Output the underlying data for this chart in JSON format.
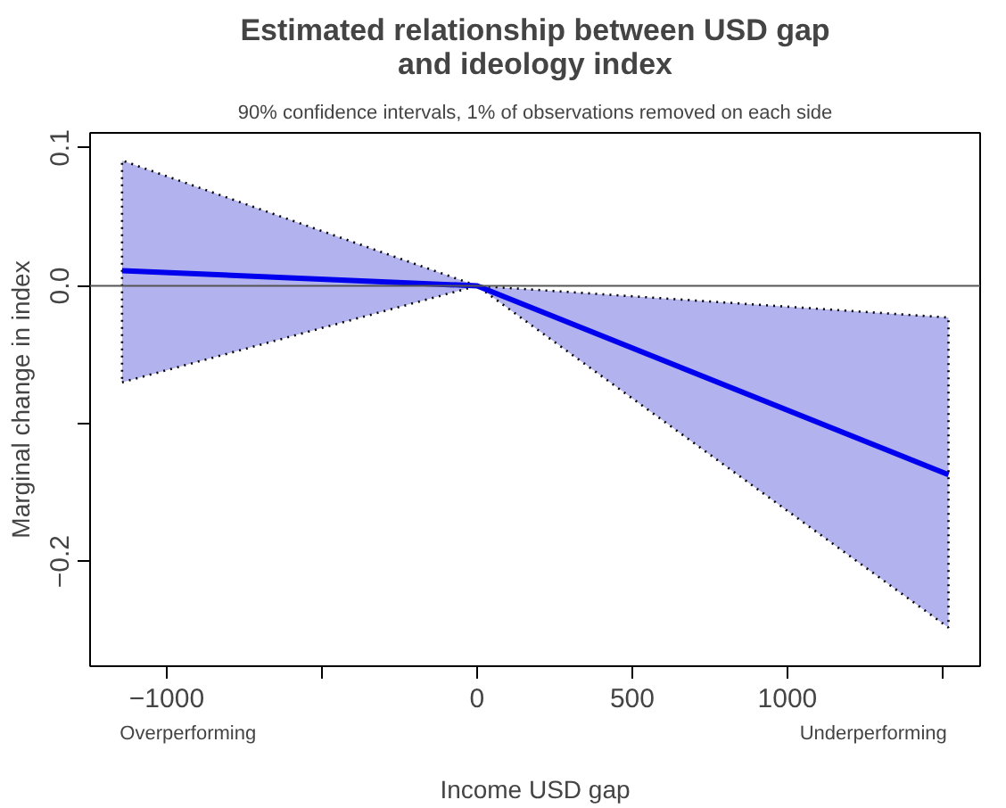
{
  "chart_data": {
    "type": "line",
    "title": "Estimated relationship between USD gap and ideology index",
    "subtitle": "90% confidence intervals, 1% of observations removed on each side",
    "xlabel": "Income USD gap",
    "ylabel": "Marginal change in index",
    "annotations": [
      "Overperforming",
      "Underperforming"
    ],
    "series": [
      {
        "color": "#0000ee",
        "x": [
          -1144,
          0,
          1519
        ],
        "values": [
          0.011,
          0,
          -0.137
        ],
        "lower": [
          -0.07,
          0,
          -0.248
        ],
        "upper": [
          0.091,
          0,
          -0.023
        ]
      }
    ],
    "xlim": [
      -1247,
      1621
    ],
    "ylim": [
      -0.276,
      0.111
    ],
    "xticks": [
      {
        "value": -1000,
        "label": "−1000"
      },
      {
        "value": -500,
        "label": null
      },
      0,
      500,
      1000,
      {
        "value": 1500,
        "label": null
      }
    ],
    "yticks": [
      {
        "value": -0.2,
        "label": "−0.2"
      },
      {
        "value": -0.1,
        "label": null
      },
      {
        "value": 0,
        "label": "0.0"
      },
      {
        "value": 0.1,
        "label": "0.1"
      }
    ],
    "ref_lines": [
      {
        "axis": "y",
        "value": 0,
        "color": "#555555"
      }
    ],
    "grid": false,
    "line_style": "solid"
  }
}
